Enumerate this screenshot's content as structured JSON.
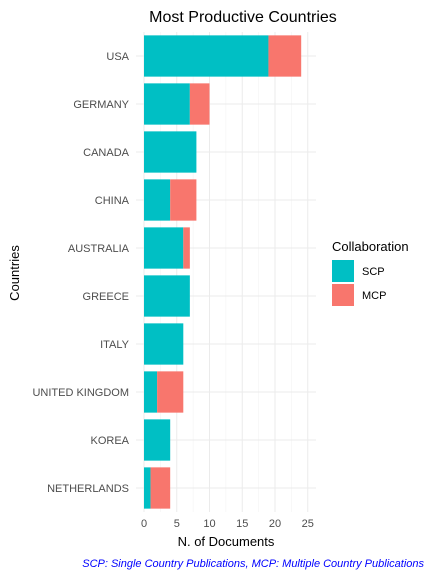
{
  "chart_data": {
    "type": "bar",
    "orientation": "horizontal",
    "stacked": true,
    "title": "Most Productive Countries",
    "xlabel": "N. of Documents",
    "ylabel": "Countries",
    "categories": [
      "USA",
      "GERMANY",
      "CANADA",
      "CHINA",
      "AUSTRALIA",
      "GREECE",
      "ITALY",
      "UNITED KINGDOM",
      "KOREA",
      "NETHERLANDS"
    ],
    "series": [
      {
        "name": "SCP",
        "color": "#00BFC4",
        "values": [
          19,
          7,
          8,
          4,
          6,
          7,
          6,
          2,
          4,
          1
        ]
      },
      {
        "name": "MCP",
        "color": "#F8766D",
        "values": [
          5,
          3,
          0,
          4,
          1,
          0,
          0,
          4,
          0,
          3
        ]
      }
    ],
    "xlim": [
      0,
      25
    ],
    "xticks": [
      0,
      5,
      10,
      15,
      20,
      25
    ],
    "grid": true,
    "legend": {
      "title": "Collaboration",
      "position": "right"
    },
    "caption": "SCP: Single Country Publications, MCP: Multiple Country Publications"
  }
}
